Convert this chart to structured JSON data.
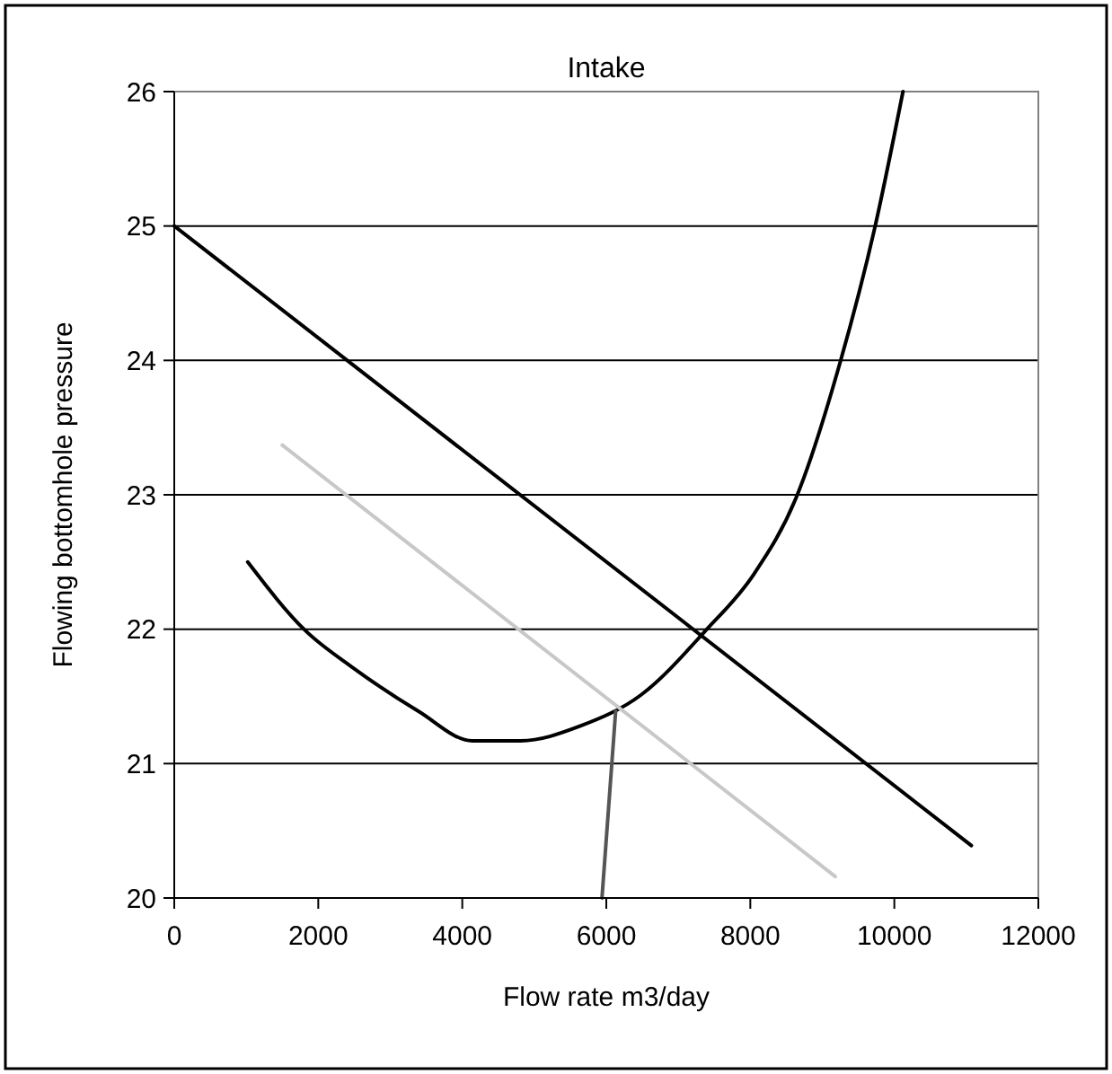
{
  "chart_data": {
    "type": "line",
    "title": "Intake",
    "xlabel": "Flow rate m3/day",
    "ylabel": "Flowing bottomhole pressure",
    "xlim": [
      0,
      12000
    ],
    "xticks": [
      0,
      2000,
      4000,
      6000,
      8000,
      10000,
      12000
    ],
    "ylim": [
      20,
      26
    ],
    "yticks": [
      20,
      21,
      22,
      23,
      24,
      25,
      26
    ],
    "grid": "y",
    "marker": "none",
    "line_style": "solid",
    "series": [
      {
        "color": "#000000",
        "x": [
          0,
          11070
        ],
        "values": [
          25,
          20.39
        ]
      },
      {
        "color": "#000000",
        "x": [
          1020,
          1820,
          2490,
          3390,
          4140,
          4810,
          5640,
          6480,
          7380,
          8050,
          8630,
          9250,
          9730,
          10120
        ],
        "values": [
          22.5,
          21.99,
          21.71,
          21.39,
          21.17,
          21.17,
          21.28,
          21.51,
          21.99,
          22.41,
          22.97,
          23.99,
          24.99,
          26.0
        ]
      },
      {
        "color": "#555555",
        "x": [
          5940,
          6130
        ],
        "values": [
          20,
          21.39
        ]
      },
      {
        "color": "#c8c8c8",
        "x": [
          1500,
          9180
        ],
        "values": [
          23.37,
          20.16
        ]
      }
    ]
  }
}
